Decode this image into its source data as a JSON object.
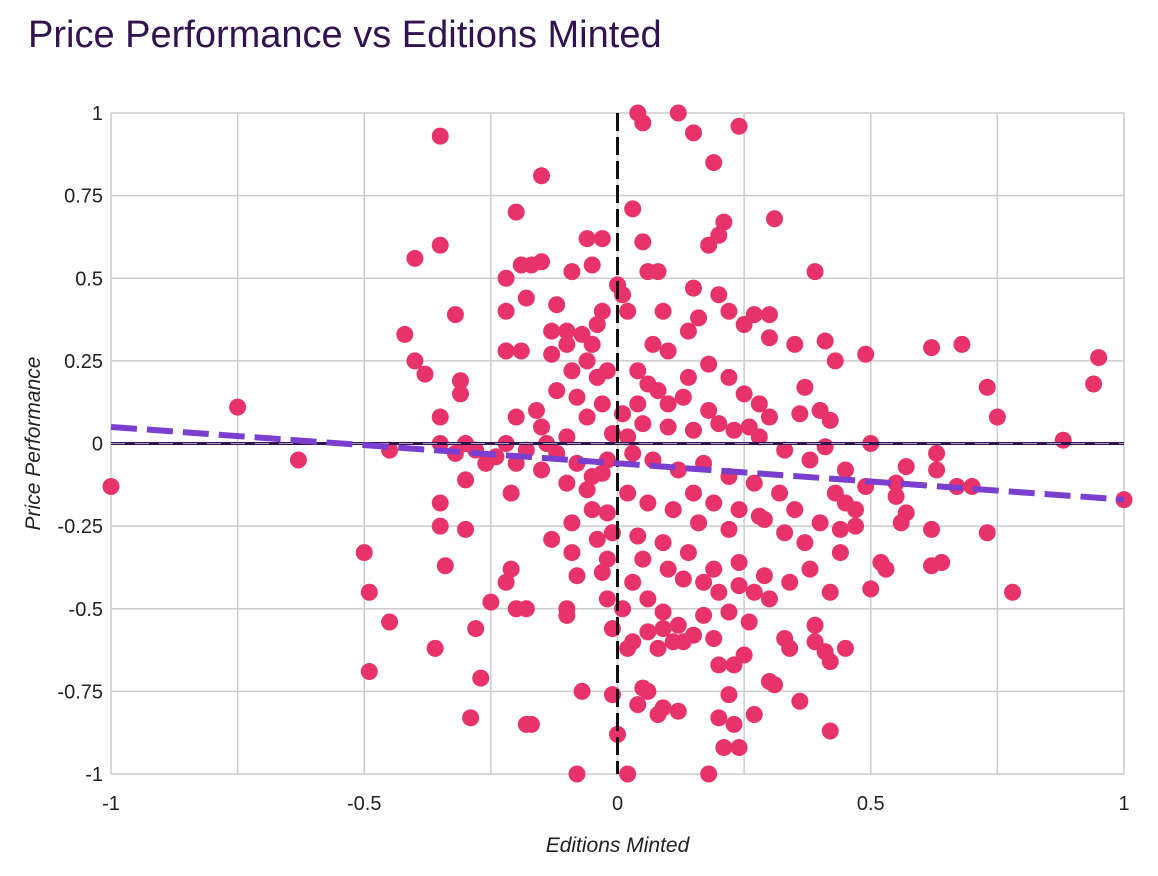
{
  "chart_data": {
    "type": "scatter",
    "title": "Price Performance vs Editions Minted",
    "xlabel": "Editions Minted",
    "ylabel": "Price Performance",
    "xlim": [
      -1,
      1
    ],
    "ylim": [
      -1,
      1
    ],
    "xticks": [
      "-1",
      "-0.5",
      "0",
      "0.5",
      "1"
    ],
    "yticks": [
      "1",
      "0.75",
      "0.5",
      "0.25",
      "0",
      "-0.25",
      "-0.5",
      "-0.75",
      "-1"
    ],
    "grid": true,
    "colors": {
      "points": "#e8336a",
      "trendline": "#7b3fcf",
      "zero_line_h": "#33134f",
      "zero_line_v": "#111111",
      "grid": "#cccccc",
      "title": "#33134f"
    },
    "trendline": {
      "x": [
        -1,
        1
      ],
      "y": [
        0.05,
        -0.17
      ]
    },
    "points": [
      [
        -1,
        -0.13
      ],
      [
        -0.75,
        0.11
      ],
      [
        -0.63,
        -0.05
      ],
      [
        -0.5,
        -0.33
      ],
      [
        -0.49,
        -0.45
      ],
      [
        -0.49,
        -0.69
      ],
      [
        -0.45,
        -0.54
      ],
      [
        -0.42,
        0.33
      ],
      [
        -0.4,
        0.56
      ],
      [
        -0.4,
        0.25
      ],
      [
        -0.38,
        0.21
      ],
      [
        -0.35,
        0.93
      ],
      [
        -0.35,
        0.6
      ],
      [
        -0.35,
        0.08
      ],
      [
        -0.35,
        -0.18
      ],
      [
        -0.35,
        -0.25
      ],
      [
        -0.34,
        -0.37
      ],
      [
        -0.36,
        -0.62
      ],
      [
        -0.32,
        0.39
      ],
      [
        -0.31,
        0.19
      ],
      [
        -0.31,
        0.15
      ],
      [
        -0.3,
        -0.11
      ],
      [
        -0.3,
        -0.26
      ],
      [
        -0.29,
        -0.83
      ],
      [
        -0.28,
        -0.56
      ],
      [
        -0.27,
        -0.71
      ],
      [
        -0.25,
        -0.48
      ],
      [
        -0.22,
        0.5
      ],
      [
        -0.22,
        0.4
      ],
      [
        -0.2,
        0.7
      ],
      [
        -0.19,
        0.54
      ],
      [
        -0.17,
        0.54
      ],
      [
        -0.18,
        0.44
      ],
      [
        -0.15,
        0.55
      ],
      [
        -0.15,
        0.81
      ],
      [
        -0.22,
        0.28
      ],
      [
        -0.19,
        0.28
      ],
      [
        -0.21,
        -0.15
      ],
      [
        -0.21,
        -0.38
      ],
      [
        -0.22,
        -0.42
      ],
      [
        -0.2,
        -0.5
      ],
      [
        -0.18,
        -0.5
      ],
      [
        -0.18,
        -0.85
      ],
      [
        -0.17,
        -0.85
      ],
      [
        -0.15,
        0.05
      ],
      [
        -0.13,
        -0.29
      ],
      [
        -0.12,
        0.42
      ],
      [
        -0.1,
        0.3
      ],
      [
        -0.1,
        -0.52
      ],
      [
        -0.09,
        -0.33
      ],
      [
        -0.09,
        0.52
      ],
      [
        -0.08,
        -0.4
      ],
      [
        -0.07,
        -0.75
      ],
      [
        -0.06,
        0.62
      ],
      [
        -0.05,
        0.54
      ],
      [
        -0.04,
        0.36
      ],
      [
        -0.03,
        0.62
      ],
      [
        -0.02,
        0.22
      ],
      [
        -0.01,
        -0.27
      ],
      [
        -0.02,
        -0.47
      ],
      [
        0,
        0.48
      ],
      [
        0.01,
        0.45
      ],
      [
        0.02,
        0.4
      ],
      [
        0.03,
        0.71
      ],
      [
        0.05,
        0.61
      ],
      [
        0.06,
        0.52
      ],
      [
        0.08,
        0.52
      ],
      [
        0.09,
        0.4
      ],
      [
        0.12,
        1
      ],
      [
        0.04,
        1
      ],
      [
        0.05,
        0.97
      ],
      [
        0.15,
        0.94
      ],
      [
        0.19,
        0.85
      ],
      [
        0.24,
        0.96
      ],
      [
        0.21,
        0.67
      ],
      [
        0.2,
        0.63
      ],
      [
        0.18,
        0.6
      ],
      [
        0.15,
        0.47
      ],
      [
        0.2,
        0.45
      ],
      [
        0.22,
        0.4
      ],
      [
        0.25,
        0.36
      ],
      [
        0.27,
        0.39
      ],
      [
        0.3,
        0.39
      ],
      [
        0.31,
        0.68
      ],
      [
        0.39,
        0.52
      ],
      [
        0.3,
        0.32
      ],
      [
        0.35,
        0.3
      ],
      [
        0.41,
        0.31
      ],
      [
        0.43,
        0.25
      ],
      [
        0.49,
        0.27
      ],
      [
        0.37,
        0.17
      ],
      [
        0.36,
        0.09
      ],
      [
        0.4,
        0.1
      ],
      [
        0.42,
        0.07
      ],
      [
        0.41,
        -0.01
      ],
      [
        0.62,
        0.29
      ],
      [
        0.68,
        0.3
      ],
      [
        0.73,
        0.17
      ],
      [
        0.75,
        0.08
      ],
      [
        0.88,
        0.01
      ],
      [
        0.94,
        0.18
      ],
      [
        0.95,
        0.26
      ],
      [
        1,
        -0.17
      ],
      [
        0.5,
        0
      ],
      [
        0.63,
        -0.03
      ],
      [
        0.63,
        -0.08
      ],
      [
        0.57,
        -0.07
      ],
      [
        0.55,
        -0.12
      ],
      [
        0.55,
        -0.16
      ],
      [
        0.57,
        -0.21
      ],
      [
        0.56,
        -0.24
      ],
      [
        0.62,
        -0.26
      ],
      [
        0.67,
        -0.13
      ],
      [
        0.7,
        -0.13
      ],
      [
        0.73,
        -0.27
      ],
      [
        0.78,
        -0.45
      ],
      [
        0.64,
        -0.36
      ],
      [
        0.62,
        -0.37
      ],
      [
        0.52,
        -0.36
      ],
      [
        0.53,
        -0.38
      ],
      [
        0.5,
        -0.44
      ],
      [
        0.49,
        -0.13
      ],
      [
        0.47,
        -0.2
      ],
      [
        0.47,
        -0.25
      ],
      [
        0.45,
        -0.18
      ],
      [
        0.44,
        -0.26
      ],
      [
        0.44,
        -0.33
      ],
      [
        0.45,
        -0.62
      ],
      [
        0.42,
        -0.45
      ],
      [
        0.42,
        -0.66
      ],
      [
        0.41,
        -0.63
      ],
      [
        0.39,
        -0.55
      ],
      [
        0.39,
        -0.6
      ],
      [
        0.42,
        -0.87
      ],
      [
        0.36,
        -0.78
      ],
      [
        0.34,
        -0.62
      ],
      [
        0.33,
        -0.59
      ],
      [
        0.31,
        -0.73
      ],
      [
        0.3,
        -0.72
      ],
      [
        0.27,
        -0.82
      ],
      [
        0.25,
        -0.64
      ],
      [
        0.23,
        -0.67
      ],
      [
        0.22,
        -0.76
      ],
      [
        0.23,
        -0.85
      ],
      [
        0.24,
        -0.92
      ],
      [
        0.21,
        -0.92
      ],
      [
        0.2,
        -0.83
      ],
      [
        0.18,
        -1
      ],
      [
        0.19,
        -0.59
      ],
      [
        0.2,
        -0.67
      ],
      [
        0.15,
        -0.58
      ],
      [
        0.13,
        -0.6
      ],
      [
        0.11,
        -0.6
      ],
      [
        0.09,
        -0.56
      ],
      [
        0.08,
        -0.62
      ],
      [
        0.08,
        -0.82
      ],
      [
        0.09,
        -0.8
      ],
      [
        0.12,
        -0.81
      ],
      [
        0.06,
        -0.75
      ],
      [
        0.05,
        -0.74
      ],
      [
        0.04,
        -0.79
      ],
      [
        0.03,
        -0.6
      ],
      [
        0.02,
        -0.62
      ],
      [
        0.02,
        -1
      ],
      [
        0,
        -0.88
      ],
      [
        -0.01,
        -0.76
      ],
      [
        -0.08,
        -1
      ],
      [
        -0.1,
        -0.5
      ],
      [
        0.01,
        -0.5
      ],
      [
        -0.01,
        -0.56
      ],
      [
        0.06,
        -0.57
      ],
      [
        0.16,
        0.38
      ],
      [
        0.14,
        0.34
      ],
      [
        0.1,
        0.28
      ],
      [
        0.07,
        0.3
      ],
      [
        0.04,
        0.22
      ],
      [
        0.06,
        0.18
      ],
      [
        0.1,
        0.12
      ],
      [
        0.14,
        0.2
      ],
      [
        0.18,
        0.24
      ],
      [
        0.22,
        0.2
      ],
      [
        0.25,
        0.15
      ],
      [
        0.28,
        0.12
      ],
      [
        0.3,
        0.08
      ],
      [
        0.26,
        0.05
      ],
      [
        0.2,
        0.06
      ],
      [
        0.15,
        0.04
      ],
      [
        0.1,
        0.05
      ],
      [
        0.05,
        0.06
      ],
      [
        0.02,
        0.02
      ],
      [
        0.03,
        -0.03
      ],
      [
        0.07,
        -0.05
      ],
      [
        0.12,
        -0.08
      ],
      [
        0.17,
        -0.06
      ],
      [
        0.22,
        -0.1
      ],
      [
        0.27,
        -0.12
      ],
      [
        0.32,
        -0.15
      ],
      [
        0.35,
        -0.2
      ],
      [
        0.28,
        -0.22
      ],
      [
        0.22,
        -0.26
      ],
      [
        0.16,
        -0.24
      ],
      [
        0.11,
        -0.2
      ],
      [
        0.06,
        -0.18
      ],
      [
        0.02,
        -0.15
      ],
      [
        0.04,
        -0.28
      ],
      [
        0.09,
        -0.3
      ],
      [
        0.14,
        -0.33
      ],
      [
        0.19,
        -0.38
      ],
      [
        0.24,
        -0.36
      ],
      [
        0.29,
        -0.4
      ],
      [
        0.34,
        -0.42
      ],
      [
        0.38,
        -0.38
      ],
      [
        -0.02,
        -0.05
      ],
      [
        -0.05,
        -0.1
      ],
      [
        -0.08,
        -0.06
      ],
      [
        -0.12,
        -0.03
      ],
      [
        -0.15,
        -0.08
      ],
      [
        -0.1,
        0.02
      ],
      [
        -0.06,
        0.08
      ],
      [
        -0.03,
        0.12
      ],
      [
        -0.08,
        0.14
      ],
      [
        -0.12,
        0.16
      ],
      [
        -0.16,
        0.1
      ],
      [
        -0.2,
        0.08
      ],
      [
        -0.22,
        0.0
      ],
      [
        -0.24,
        -0.04
      ],
      [
        -0.28,
        -0.02
      ],
      [
        -0.3,
        0.0
      ],
      [
        -0.32,
        -0.03
      ],
      [
        -0.45,
        -0.02
      ],
      [
        -0.35,
        0.0
      ],
      [
        -0.26,
        -0.06
      ],
      [
        -0.2,
        -0.06
      ],
      [
        -0.18,
        -0.02
      ],
      [
        -0.14,
        0.0
      ],
      [
        -0.1,
        -0.12
      ],
      [
        -0.06,
        -0.14
      ],
      [
        -0.03,
        -0.09
      ],
      [
        -0.01,
        0.03
      ],
      [
        -0.04,
        0.2
      ],
      [
        -0.06,
        0.25
      ],
      [
        -0.09,
        0.22
      ],
      [
        -0.13,
        0.27
      ],
      [
        -0.1,
        0.34
      ],
      [
        -0.07,
        0.33
      ],
      [
        -0.13,
        0.34
      ],
      [
        -0.05,
        0.3
      ],
      [
        -0.03,
        0.4
      ],
      [
        -0.02,
        -0.21
      ],
      [
        -0.05,
        -0.2
      ],
      [
        -0.09,
        -0.24
      ],
      [
        -0.04,
        -0.29
      ],
      [
        -0.02,
        -0.35
      ],
      [
        -0.03,
        -0.39
      ],
      [
        0.05,
        -0.35
      ],
      [
        0.1,
        -0.38
      ],
      [
        0.13,
        -0.41
      ],
      [
        0.17,
        -0.42
      ],
      [
        0.2,
        -0.45
      ],
      [
        0.24,
        -0.43
      ],
      [
        0.27,
        -0.45
      ],
      [
        0.3,
        -0.47
      ],
      [
        0.26,
        -0.54
      ],
      [
        0.22,
        -0.51
      ],
      [
        0.17,
        -0.52
      ],
      [
        0.12,
        -0.55
      ],
      [
        0.09,
        -0.51
      ],
      [
        0.06,
        -0.47
      ],
      [
        0.03,
        -0.42
      ],
      [
        0.15,
        -0.15
      ],
      [
        0.19,
        -0.18
      ],
      [
        0.24,
        -0.2
      ],
      [
        0.29,
        -0.23
      ],
      [
        0.33,
        -0.27
      ],
      [
        0.37,
        -0.3
      ],
      [
        0.4,
        -0.24
      ],
      [
        0.43,
        -0.15
      ],
      [
        0.45,
        -0.08
      ],
      [
        0.38,
        -0.05
      ],
      [
        0.33,
        -0.02
      ],
      [
        0.28,
        0.02
      ],
      [
        0.23,
        0.04
      ],
      [
        0.18,
        0.1
      ],
      [
        0.13,
        0.14
      ],
      [
        0.08,
        0.16
      ],
      [
        0.04,
        0.12
      ],
      [
        0.01,
        0.09
      ]
    ]
  }
}
